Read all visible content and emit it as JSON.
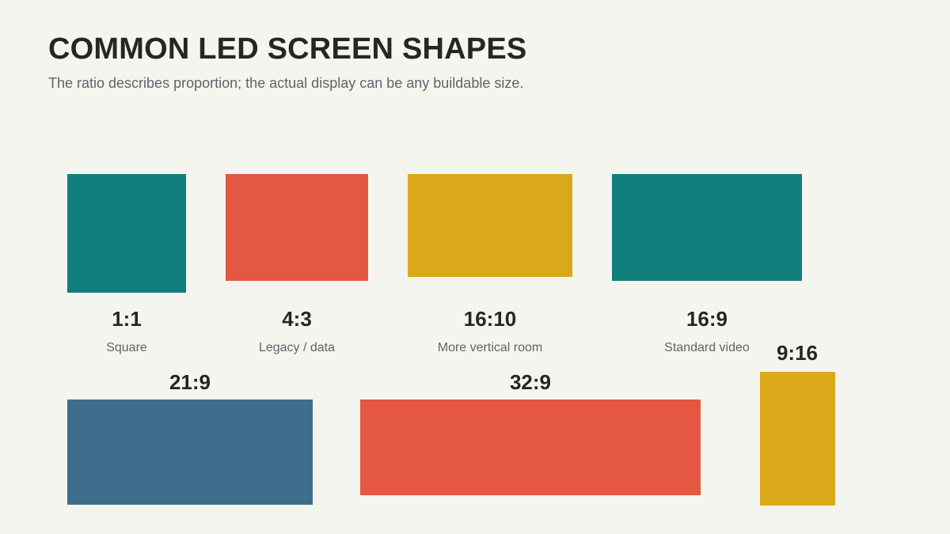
{
  "title": "COMMON LED SCREEN SHAPES",
  "subtitle": "The ratio describes proportion; the actual display can be any buildable size.",
  "colors": {
    "teal": "#107e7d",
    "coral": "#e45740",
    "gold": "#d9a91a",
    "slate": "#3f6e8c",
    "background": "#f5f5f0"
  },
  "shapes": [
    {
      "ratio": "1:1",
      "description": "Square",
      "color": "#107e7d"
    },
    {
      "ratio": "4:3",
      "description": "Legacy / data",
      "color": "#e45740"
    },
    {
      "ratio": "16:10",
      "description": "More vertical room",
      "color": "#d9a91a"
    },
    {
      "ratio": "16:9",
      "description": "Standard video",
      "color": "#107e7d"
    },
    {
      "ratio": "21:9",
      "description": "",
      "color": "#3f6e8c"
    },
    {
      "ratio": "32:9",
      "description": "",
      "color": "#e45740"
    },
    {
      "ratio": "9:16",
      "description": "",
      "color": "#d9a91a"
    }
  ]
}
